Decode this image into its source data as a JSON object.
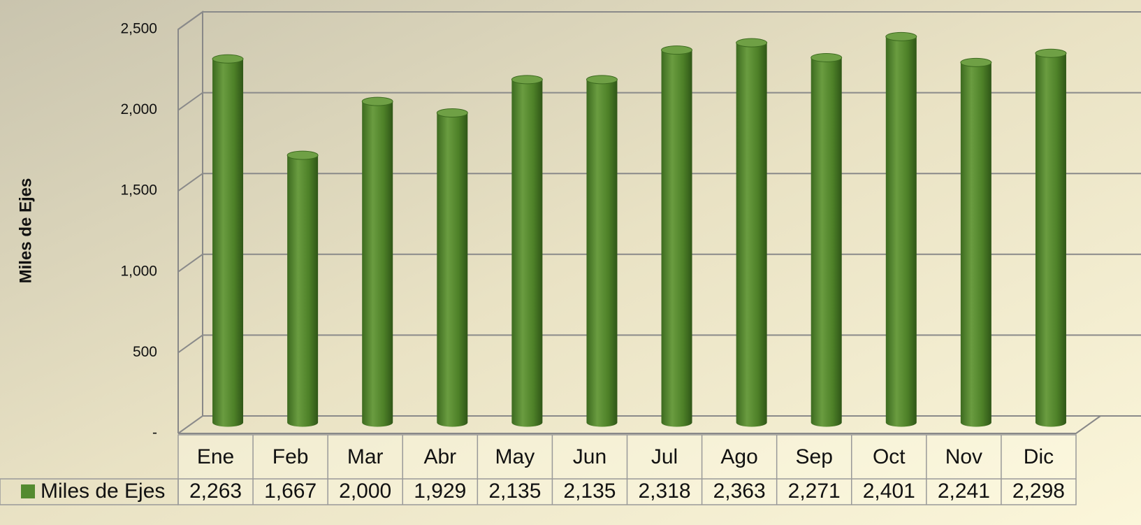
{
  "chart_data": {
    "type": "bar",
    "ylabel": "Miles de Ejes",
    "categories": [
      "Ene",
      "Feb",
      "Mar",
      "Abr",
      "May",
      "Jun",
      "Jul",
      "Ago",
      "Sep",
      "Oct",
      "Nov",
      "Dic"
    ],
    "series": [
      {
        "name": "Miles de Ejes",
        "color": "#548b30",
        "values": [
          2263,
          1667,
          2000,
          1929,
          2135,
          2135,
          2318,
          2363,
          2271,
          2401,
          2241,
          2298
        ],
        "value_labels": [
          "2,263",
          "1,667",
          "2,000",
          "1,929",
          "2,135",
          "2,135",
          "2,318",
          "2,363",
          "2,271",
          "2,401",
          "2,241",
          "2,298"
        ]
      }
    ],
    "ylim": [
      0,
      2500
    ],
    "yticks": [
      {
        "value": 0,
        "label": "-"
      },
      500,
      {
        "value": 1000,
        "label": "1,000"
      },
      {
        "value": 1500,
        "label": "1,500"
      },
      {
        "value": 2000,
        "label": "2,000"
      },
      {
        "value": 2500,
        "label": "2,500"
      }
    ],
    "grid": true
  }
}
